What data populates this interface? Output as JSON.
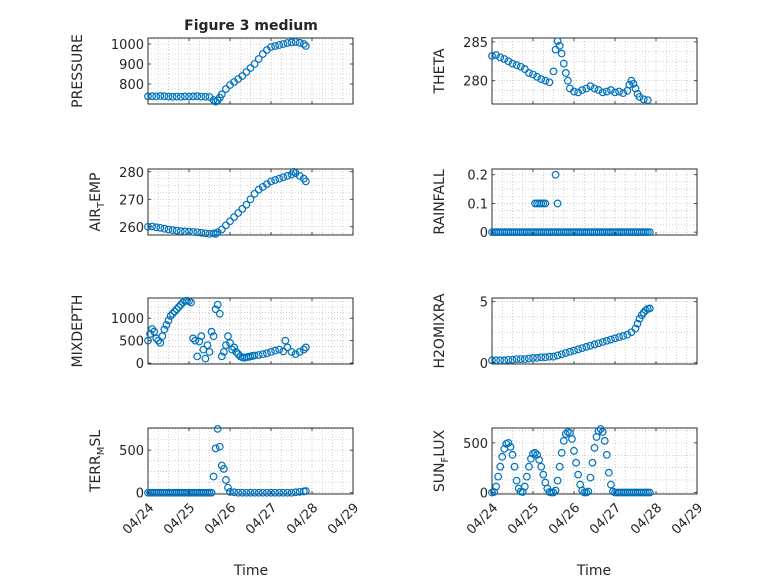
{
  "chart_data": [
    {
      "type": "scatter",
      "title": "Figure 3 medium",
      "ylabel": "PRESSURE",
      "ylabel_sub": "",
      "ylim": [
        700,
        1030
      ],
      "yticks": [
        800,
        900,
        1000
      ],
      "ytick_labels": [
        "800",
        "900",
        "1000"
      ],
      "x": [
        0,
        0.1,
        0.2,
        0.3,
        0.4,
        0.5,
        0.6,
        0.7,
        0.8,
        0.9,
        1.0,
        1.1,
        1.2,
        1.3,
        1.4,
        1.5,
        1.6,
        1.65,
        1.7,
        1.75,
        1.8,
        1.9,
        2.0,
        2.1,
        2.2,
        2.3,
        2.4,
        2.5,
        2.6,
        2.7,
        2.8,
        2.9,
        3.0,
        3.1,
        3.2,
        3.3,
        3.4,
        3.5,
        3.6,
        3.7,
        3.8,
        3.85
      ],
      "y": [
        738,
        739,
        738,
        740,
        739,
        737,
        736,
        737,
        736,
        738,
        737,
        738,
        739,
        737,
        736,
        735,
        720,
        712,
        718,
        732,
        748,
        775,
        795,
        810,
        825,
        840,
        860,
        880,
        900,
        925,
        950,
        970,
        985,
        990,
        995,
        1000,
        1005,
        1008,
        1010,
        1006,
        1000,
        990
      ]
    },
    {
      "type": "scatter",
      "title": "",
      "ylabel": "THETA",
      "ylabel_sub": "",
      "ylim": [
        277,
        285.5
      ],
      "yticks": [
        280,
        285
      ],
      "ytick_labels": [
        "280",
        "285"
      ],
      "x": [
        0,
        0.1,
        0.2,
        0.3,
        0.4,
        0.5,
        0.6,
        0.7,
        0.8,
        0.9,
        1.0,
        1.1,
        1.2,
        1.3,
        1.4,
        1.5,
        1.55,
        1.6,
        1.65,
        1.7,
        1.75,
        1.8,
        1.85,
        1.9,
        2.0,
        2.1,
        2.2,
        2.3,
        2.4,
        2.5,
        2.6,
        2.7,
        2.8,
        2.9,
        3.0,
        3.1,
        3.2,
        3.3,
        3.35,
        3.4,
        3.45,
        3.5,
        3.55,
        3.6,
        3.7,
        3.8
      ],
      "y": [
        283.2,
        283.3,
        283.0,
        282.8,
        282.5,
        282.2,
        282.0,
        281.8,
        281.5,
        281.0,
        280.8,
        280.5,
        280.2,
        280.0,
        279.8,
        281.2,
        284.0,
        285.1,
        284.5,
        283.5,
        282.2,
        281.0,
        280.0,
        279.0,
        278.6,
        278.5,
        278.8,
        279.0,
        279.3,
        279.0,
        278.8,
        278.5,
        278.6,
        278.8,
        278.5,
        278.6,
        278.4,
        278.7,
        279.5,
        280.0,
        279.6,
        279.0,
        278.3,
        277.9,
        277.6,
        277.5
      ]
    },
    {
      "type": "scatter",
      "title": "",
      "ylabel": "AIR",
      "ylabel_sub": "T",
      "ylabel_rest": "EMP",
      "ylim": [
        257,
        281
      ],
      "yticks": [
        260,
        270,
        280
      ],
      "ytick_labels": [
        "260",
        "270",
        "280"
      ],
      "x": [
        0,
        0.1,
        0.2,
        0.3,
        0.4,
        0.5,
        0.6,
        0.7,
        0.8,
        0.9,
        1.0,
        1.1,
        1.2,
        1.3,
        1.4,
        1.5,
        1.6,
        1.65,
        1.7,
        1.8,
        1.9,
        2.0,
        2.1,
        2.2,
        2.3,
        2.4,
        2.5,
        2.6,
        2.7,
        2.8,
        2.9,
        3.0,
        3.1,
        3.2,
        3.3,
        3.4,
        3.5,
        3.55,
        3.6,
        3.7,
        3.8,
        3.85
      ],
      "y": [
        260.0,
        260.1,
        259.8,
        259.6,
        259.3,
        259.0,
        258.8,
        258.6,
        258.4,
        258.3,
        258.2,
        258.1,
        258.0,
        257.8,
        257.6,
        257.4,
        257.6,
        257.4,
        258.0,
        259.0,
        260.5,
        262.0,
        263.5,
        265.0,
        266.5,
        268.0,
        270.0,
        272.0,
        273.5,
        274.5,
        275.5,
        276.5,
        277.0,
        277.5,
        278.0,
        278.5,
        279.0,
        280.0,
        279.5,
        278.5,
        277.5,
        276.5
      ]
    },
    {
      "type": "scatter",
      "title": "",
      "ylabel": "RAINFALL",
      "ylabel_sub": "",
      "ylim": [
        -0.01,
        0.22
      ],
      "yticks": [
        0,
        0.1,
        0.2
      ],
      "ytick_labels": [
        "0",
        "0.1",
        "0.2"
      ],
      "x": [
        0,
        0.05,
        0.1,
        0.15,
        0.2,
        0.25,
        0.3,
        0.35,
        0.4,
        0.45,
        0.5,
        0.55,
        0.6,
        0.65,
        0.7,
        0.75,
        0.8,
        0.85,
        0.9,
        0.95,
        1.0,
        1.05,
        1.1,
        1.15,
        1.2,
        1.25,
        1.3,
        1.35,
        1.4,
        1.45,
        1.5,
        1.55,
        1.6,
        1.65,
        1.7,
        1.75,
        1.8,
        1.85,
        1.9,
        1.95,
        2.0,
        2.05,
        2.1,
        2.15,
        2.2,
        2.25,
        2.3,
        2.35,
        2.4,
        2.45,
        2.5,
        2.55,
        2.6,
        2.65,
        2.7,
        2.75,
        2.8,
        2.85,
        2.9,
        2.95,
        3.0,
        3.05,
        3.1,
        3.15,
        3.2,
        3.25,
        3.3,
        3.35,
        3.4,
        3.45,
        3.5,
        3.55,
        3.6,
        3.65,
        3.7,
        3.75,
        3.8,
        3.85,
        1.05,
        1.1,
        1.15,
        1.2,
        1.25,
        1.3,
        1.55,
        1.6
      ],
      "y": [
        0,
        0,
        0,
        0,
        0,
        0,
        0,
        0,
        0,
        0,
        0,
        0,
        0,
        0,
        0,
        0,
        0,
        0,
        0,
        0,
        0,
        0,
        0,
        0,
        0,
        0,
        0,
        0,
        0,
        0,
        0,
        0,
        0,
        0,
        0,
        0,
        0,
        0,
        0,
        0,
        0,
        0,
        0,
        0,
        0,
        0,
        0,
        0,
        0,
        0,
        0,
        0,
        0,
        0,
        0,
        0,
        0,
        0,
        0,
        0,
        0,
        0,
        0,
        0,
        0,
        0,
        0,
        0,
        0,
        0,
        0,
        0,
        0,
        0,
        0,
        0,
        0,
        0,
        0.1,
        0.1,
        0.1,
        0.1,
        0.1,
        0.1,
        0.2,
        0.1
      ]
    },
    {
      "type": "scatter",
      "title": "",
      "ylabel": "MIXDEPTH",
      "ylabel_sub": "",
      "ylim": [
        -20,
        1450
      ],
      "yticks": [
        0,
        500,
        1000
      ],
      "ytick_labels": [
        "0",
        "500",
        "1000"
      ],
      "x": [
        0,
        0.05,
        0.1,
        0.15,
        0.2,
        0.25,
        0.3,
        0.35,
        0.4,
        0.45,
        0.5,
        0.55,
        0.6,
        0.65,
        0.7,
        0.75,
        0.8,
        0.85,
        0.9,
        0.95,
        1.0,
        1.05,
        1.1,
        1.15,
        1.2,
        1.25,
        1.3,
        1.35,
        1.4,
        1.45,
        1.5,
        1.55,
        1.6,
        1.65,
        1.7,
        1.75,
        1.8,
        1.85,
        1.9,
        1.95,
        2.0,
        2.05,
        2.1,
        2.15,
        2.2,
        2.25,
        2.3,
        2.35,
        2.4,
        2.45,
        2.5,
        2.55,
        2.6,
        2.7,
        2.8,
        2.9,
        3.0,
        3.1,
        3.2,
        3.3,
        3.35,
        3.4,
        3.5,
        3.6,
        3.7,
        3.8,
        3.85
      ],
      "y": [
        500,
        650,
        760,
        700,
        550,
        500,
        450,
        600,
        750,
        850,
        950,
        1050,
        1100,
        1150,
        1200,
        1250,
        1300,
        1350,
        1380,
        1390,
        1380,
        1350,
        550,
        500,
        150,
        480,
        600,
        300,
        100,
        400,
        250,
        700,
        600,
        1200,
        1300,
        1100,
        150,
        250,
        400,
        600,
        450,
        300,
        350,
        250,
        200,
        150,
        130,
        120,
        130,
        140,
        150,
        160,
        170,
        180,
        200,
        220,
        250,
        280,
        300,
        260,
        500,
        350,
        250,
        200,
        250,
        300,
        350
      ]
    },
    {
      "type": "scatter",
      "title": "",
      "ylabel": "H2OMIXRA",
      "ylabel_sub": "",
      "ylim": [
        -0.1,
        5.3
      ],
      "yticks": [
        0,
        5
      ],
      "ytick_labels": [
        "0",
        "5"
      ],
      "x": [
        0,
        0.1,
        0.2,
        0.3,
        0.4,
        0.5,
        0.6,
        0.7,
        0.8,
        0.9,
        1.0,
        1.1,
        1.2,
        1.3,
        1.4,
        1.5,
        1.6,
        1.7,
        1.8,
        1.9,
        2.0,
        2.1,
        2.2,
        2.3,
        2.4,
        2.5,
        2.6,
        2.7,
        2.8,
        2.9,
        3.0,
        3.1,
        3.2,
        3.3,
        3.4,
        3.5,
        3.55,
        3.6,
        3.65,
        3.7,
        3.75,
        3.8,
        3.85
      ],
      "y": [
        0.2,
        0.2,
        0.2,
        0.2,
        0.25,
        0.25,
        0.3,
        0.3,
        0.3,
        0.35,
        0.4,
        0.4,
        0.45,
        0.45,
        0.5,
        0.5,
        0.6,
        0.7,
        0.8,
        0.9,
        1.0,
        1.1,
        1.2,
        1.3,
        1.4,
        1.5,
        1.6,
        1.7,
        1.8,
        1.9,
        2.0,
        2.1,
        2.2,
        2.3,
        2.5,
        2.8,
        3.2,
        3.6,
        3.9,
        4.1,
        4.3,
        4.4,
        4.45
      ]
    },
    {
      "type": "scatter",
      "title": "",
      "ylabel": "TERR",
      "ylabel_sub": "M",
      "ylabel_rest": "SL",
      "ylim": [
        -15,
        760
      ],
      "yticks": [
        0,
        500
      ],
      "ytick_labels": [
        "0",
        "500"
      ],
      "x": [
        0,
        0.05,
        0.1,
        0.15,
        0.2,
        0.25,
        0.3,
        0.35,
        0.4,
        0.45,
        0.5,
        0.55,
        0.6,
        0.65,
        0.7,
        0.75,
        0.8,
        0.85,
        0.9,
        0.95,
        1.0,
        1.05,
        1.1,
        1.15,
        1.2,
        1.25,
        1.3,
        1.35,
        1.4,
        1.45,
        1.5,
        1.55,
        1.6,
        1.65,
        1.7,
        1.75,
        1.8,
        1.85,
        1.9,
        1.95,
        2.0,
        2.1,
        2.2,
        2.3,
        2.4,
        2.5,
        2.6,
        2.7,
        2.8,
        2.9,
        3.0,
        3.1,
        3.2,
        3.3,
        3.4,
        3.5,
        3.6,
        3.7,
        3.8,
        3.85
      ],
      "y": [
        0,
        0,
        0,
        0,
        0,
        0,
        0,
        0,
        0,
        0,
        0,
        0,
        0,
        0,
        0,
        0,
        0,
        0,
        0,
        0,
        0,
        0,
        0,
        0,
        0,
        0,
        0,
        0,
        0,
        0,
        0,
        0,
        190,
        520,
        750,
        540,
        320,
        280,
        150,
        60,
        10,
        5,
        0,
        0,
        0,
        0,
        0,
        0,
        0,
        0,
        0,
        0,
        0,
        0,
        0,
        0,
        5,
        10,
        15,
        20
      ]
    },
    {
      "type": "scatter",
      "title": "",
      "ylabel": "SUN",
      "ylabel_sub": "F",
      "ylabel_rest": "LUX",
      "ylim": [
        -15,
        650
      ],
      "yticks": [
        0,
        500
      ],
      "ytick_labels": [
        "0",
        "500"
      ],
      "x": [
        0,
        0.05,
        0.1,
        0.15,
        0.2,
        0.25,
        0.3,
        0.35,
        0.4,
        0.45,
        0.5,
        0.55,
        0.6,
        0.65,
        0.7,
        0.75,
        0.8,
        0.85,
        0.9,
        0.95,
        1.0,
        1.05,
        1.1,
        1.15,
        1.2,
        1.25,
        1.3,
        1.35,
        1.4,
        1.45,
        1.5,
        1.55,
        1.6,
        1.65,
        1.7,
        1.75,
        1.8,
        1.85,
        1.9,
        1.95,
        2.0,
        2.05,
        2.1,
        2.15,
        2.2,
        2.25,
        2.3,
        2.35,
        2.4,
        2.45,
        2.5,
        2.55,
        2.6,
        2.65,
        2.7,
        2.75,
        2.8,
        2.85,
        2.9,
        2.95,
        3.0,
        3.05,
        3.1,
        3.15,
        3.2,
        3.25,
        3.3,
        3.35,
        3.4,
        3.45,
        3.5,
        3.55,
        3.6,
        3.65,
        3.7,
        3.75,
        3.8,
        3.85
      ],
      "y": [
        0,
        5,
        60,
        160,
        260,
        360,
        440,
        490,
        500,
        460,
        380,
        260,
        120,
        40,
        10,
        5,
        60,
        160,
        260,
        340,
        390,
        400,
        380,
        330,
        260,
        180,
        100,
        40,
        5,
        0,
        0,
        20,
        120,
        260,
        400,
        520,
        590,
        610,
        600,
        540,
        420,
        300,
        180,
        80,
        20,
        0,
        0,
        10,
        150,
        300,
        450,
        560,
        620,
        640,
        610,
        520,
        380,
        200,
        80,
        10,
        0,
        0,
        0,
        0,
        0,
        0,
        0,
        0,
        0,
        0,
        0,
        0,
        0,
        0,
        0,
        0,
        0,
        0
      ]
    }
  ],
  "x_axis": {
    "xlim": [
      0,
      5
    ],
    "xticks": [
      0,
      1,
      2,
      3,
      4,
      5
    ],
    "xtick_labels": [
      "04/24",
      "04/25",
      "04/26",
      "04/27",
      "04/28",
      "04/29"
    ],
    "xlabel": "Time",
    "grid": true,
    "minor_grid": true
  },
  "colors": {
    "marker": "#0072bd",
    "axes": "#262626",
    "grid": "#b0b0b0"
  }
}
